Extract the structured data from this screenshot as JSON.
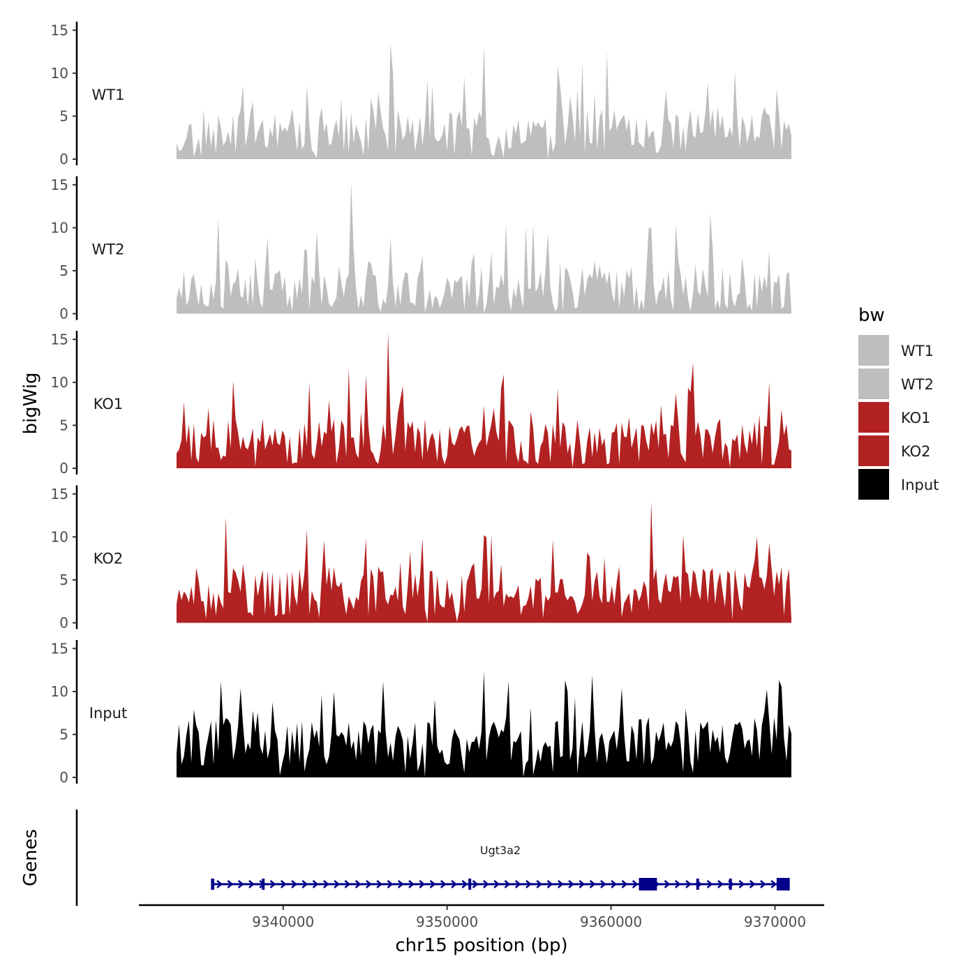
{
  "chart_data": {
    "type": "area",
    "title": "",
    "ylabel": "bigWig",
    "xlabel": "chr15 position (bp)",
    "ylim": [
      0,
      16
    ],
    "yticks": [
      0,
      5,
      10,
      15
    ],
    "ytick_labels": [
      "0",
      "5",
      "10",
      "15"
    ],
    "xlim": [
      9331200,
      9373000
    ],
    "xticks": [
      9340000,
      9350000,
      9360000,
      9370000
    ],
    "xtick_labels": [
      "9340000",
      "9350000",
      "9360000",
      "9370000"
    ],
    "x_start": 9333500,
    "x_end": 9371000,
    "x_step": 150,
    "series": [
      {
        "name": "WT1",
        "color": "#BEBEBE",
        "seed": 11,
        "base": 3.2,
        "spread": 2.6,
        "peaks": [
          [
            9346500,
            13.5
          ],
          [
            9352200,
            13.2
          ],
          [
            9359800,
            12.6
          ],
          [
            9358300,
            11.3
          ],
          [
            9367500,
            10.2
          ],
          [
            9351100,
            9.6
          ]
        ]
      },
      {
        "name": "WT2",
        "color": "#BEBEBE",
        "seed": 23,
        "base": 3.0,
        "spread": 2.5,
        "peaks": [
          [
            9344200,
            15.3
          ],
          [
            9336000,
            11.2
          ],
          [
            9342000,
            9.7
          ],
          [
            9354800,
            10.1
          ],
          [
            9366000,
            11.6
          ],
          [
            9364000,
            10.4
          ],
          [
            9362500,
            10.0
          ]
        ]
      },
      {
        "name": "KO1",
        "color": "#B22222",
        "seed": 37,
        "base": 3.1,
        "spread": 2.7,
        "peaks": [
          [
            9346400,
            15.8
          ],
          [
            9344000,
            11.6
          ],
          [
            9345000,
            10.8
          ],
          [
            9365000,
            12.3
          ],
          [
            9356700,
            9.3
          ],
          [
            9353400,
            10.9
          ]
        ]
      },
      {
        "name": "KO2",
        "color": "#B22222",
        "seed": 51,
        "base": 3.6,
        "spread": 2.8,
        "peaks": [
          [
            9362500,
            14.1
          ],
          [
            9336500,
            12.3
          ],
          [
            9352200,
            10.2
          ],
          [
            9356400,
            9.7
          ],
          [
            9368900,
            10.0
          ],
          [
            9348500,
            9.8
          ]
        ]
      },
      {
        "name": "Input",
        "color": "#000000",
        "seed": 67,
        "base": 4.1,
        "spread": 2.7,
        "peaks": [
          [
            9352200,
            12.3
          ],
          [
            9358900,
            11.9
          ],
          [
            9336200,
            11.2
          ],
          [
            9346100,
            11.2
          ],
          [
            9353800,
            11.2
          ],
          [
            9360700,
            10.4
          ]
        ]
      }
    ],
    "legend": {
      "title": "bw",
      "position": "right",
      "entries": [
        {
          "name": "WT1",
          "color": "#BEBEBE"
        },
        {
          "name": "WT2",
          "color": "#BEBEBE"
        },
        {
          "name": "KO1",
          "color": "#B22222"
        },
        {
          "name": "KO2",
          "color": "#B22222"
        },
        {
          "name": "Input",
          "color": "#000000"
        }
      ]
    },
    "genes": {
      "title": "Genes",
      "color": "#00008B",
      "name": "Ugt3a2",
      "start": 9335700,
      "end": 9370800,
      "strand": "+",
      "exons": [
        [
          9335600,
          9335800
        ],
        [
          9338700,
          9338800
        ],
        [
          9351300,
          9351400
        ],
        [
          9361700,
          9362800
        ],
        [
          9365200,
          9365350
        ],
        [
          9367200,
          9367350
        ],
        [
          9370100,
          9370900
        ]
      ]
    }
  }
}
